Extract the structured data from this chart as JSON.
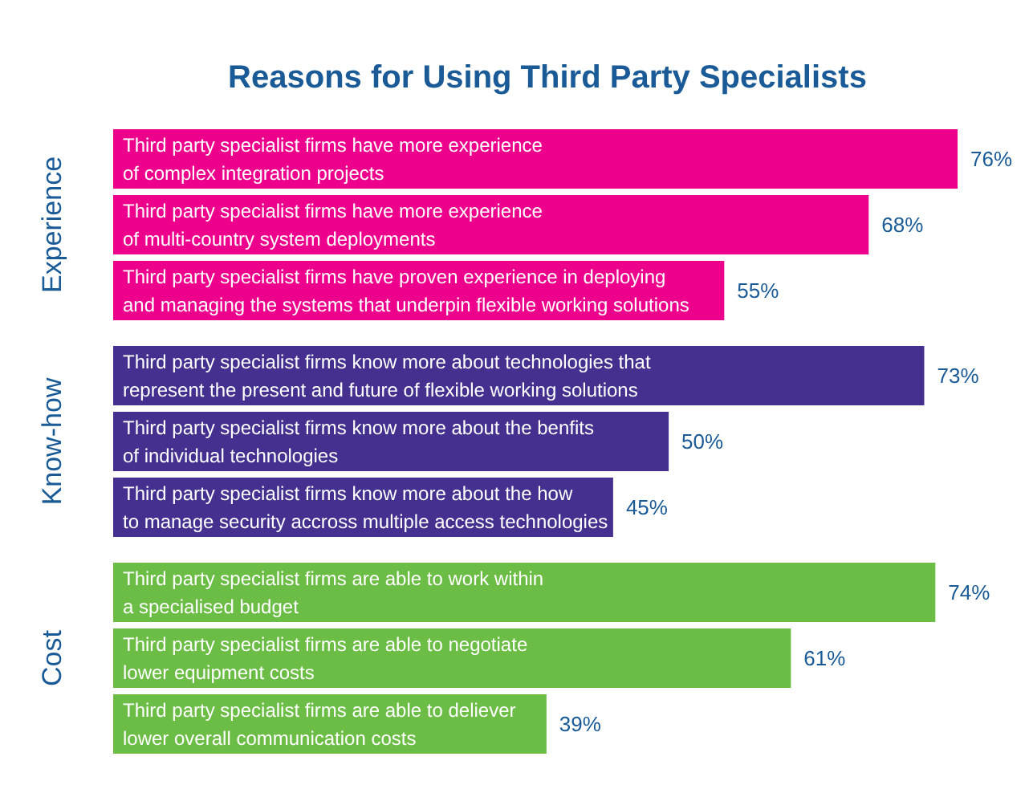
{
  "chart_data": {
    "type": "bar",
    "orientation": "horizontal",
    "title": "Reasons for Using Third Party Specialists",
    "categories": [
      "Third party specialist firms have more experience\nof complex integration projects",
      "Third party specialist firms have more experience\nof multi-country system deployments",
      "Third party specialist firms have proven experience in deploying\nand managing the systems that underpin flexible working solutions",
      "Third party specialist firms know more about technologies that\nrepresent the present and future of flexible working solutions",
      "Third party specialist firms know more about the benfits\nof individual technologies",
      "Third party specialist firms know more about  the how\nto manage security accross multiple access technologies",
      "Third party specialist firms are able to work within\na specialised budget",
      "Third party specialist firms are able to negotiate\nlower equipment costs",
      "Third party specialist firms are able to deliever\nlower overall communication costs"
    ],
    "series": [
      {
        "name": "Experience",
        "color": "#ec008c",
        "values": [
          76,
          68,
          55,
          null,
          null,
          null,
          null,
          null,
          null
        ],
        "value_labels": [
          "76%",
          "68%",
          "55%",
          null,
          null,
          null,
          null,
          null,
          null
        ]
      },
      {
        "name": "Know-how",
        "color": "#46308f",
        "values": [
          null,
          null,
          null,
          73,
          50,
          45,
          null,
          null,
          null
        ],
        "value_labels": [
          null,
          null,
          null,
          "73%",
          "50%",
          "45%",
          null,
          null,
          null
        ]
      },
      {
        "name": "Cost",
        "color": "#6cbd45",
        "values": [
          null,
          null,
          null,
          null,
          null,
          null,
          74,
          61,
          39
        ],
        "value_labels": [
          null,
          null,
          null,
          null,
          null,
          null,
          "74%",
          "61%",
          "39%"
        ]
      }
    ],
    "grid": false
  }
}
